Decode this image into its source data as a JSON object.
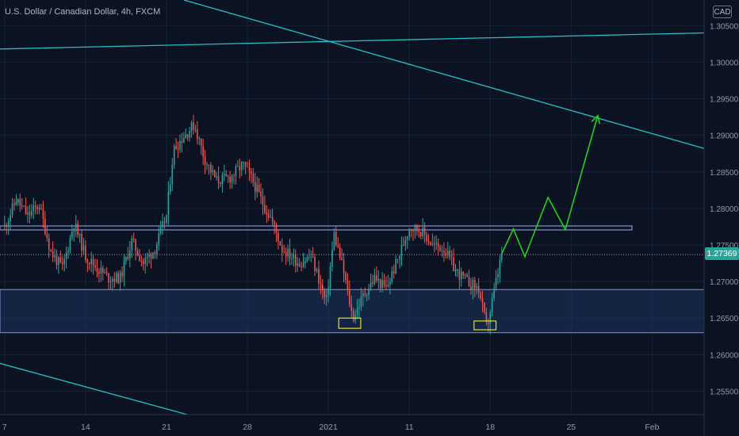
{
  "header": {
    "title": "U.S. Dollar / Canadian Dollar, 4h, FXCM",
    "currency_badge": "CAD",
    "last_price": "1.27369"
  },
  "colors": {
    "background": "#0b1323",
    "grid": "#172236",
    "candle_up": "#26a69a",
    "candle_down": "#ef5350",
    "trendline": "#1fbfc7",
    "zone": "#1f3a6b",
    "zone_border": "#7f95d6",
    "projection": "#1ed219",
    "marker": "#e6e20f",
    "axis_text": "#9598a1"
  },
  "chart_data": {
    "type": "candlestick",
    "instrument": "USDCAD",
    "timeframe": "4h",
    "source": "FXCM",
    "y_axis": {
      "ticks": [
        "1.25500",
        "1.26000",
        "1.26500",
        "1.27000",
        "1.27500",
        "1.28000",
        "1.28500",
        "1.29000",
        "1.29500",
        "1.30000",
        "1.30500"
      ],
      "ylim": [
        1.2518,
        1.3085
      ]
    },
    "x_axis": {
      "ticks": [
        "7",
        "14",
        "21",
        "28",
        "2021",
        "11",
        "18",
        "25",
        "Feb"
      ],
      "tick_positions": [
        0,
        7,
        14,
        21,
        28,
        35,
        42,
        49,
        56
      ],
      "xlim": [
        -0.4,
        60.5
      ]
    },
    "last_price": 1.27369,
    "candles_per_day": 6,
    "price_path": [
      [
        0,
        1.2775
      ],
      [
        1,
        1.2812
      ],
      [
        2,
        1.279
      ],
      [
        3,
        1.2805
      ],
      [
        4,
        1.274
      ],
      [
        5,
        1.2718
      ],
      [
        6,
        1.278
      ],
      [
        7,
        1.2735
      ],
      [
        8,
        1.2718
      ],
      [
        9,
        1.2705
      ],
      [
        10,
        1.2705
      ],
      [
        11,
        1.2755
      ],
      [
        12,
        1.2725
      ],
      [
        13,
        1.2745
      ],
      [
        14,
        1.279
      ],
      [
        14.6,
        1.288
      ],
      [
        15.3,
        1.2895
      ],
      [
        16.4,
        1.2915
      ],
      [
        17.3,
        1.2868
      ],
      [
        18.3,
        1.2838
      ],
      [
        19.5,
        1.2842
      ],
      [
        20.6,
        1.286
      ],
      [
        21.4,
        1.284
      ],
      [
        22.3,
        1.2808
      ],
      [
        23,
        1.2788
      ],
      [
        24,
        1.2745
      ],
      [
        25.5,
        1.2725
      ],
      [
        26.5,
        1.2735
      ],
      [
        27,
        1.2712
      ],
      [
        27.8,
        1.267
      ],
      [
        28.5,
        1.2765
      ],
      [
        29.3,
        1.2715
      ],
      [
        30.1,
        1.265
      ],
      [
        31,
        1.268
      ],
      [
        32,
        1.2705
      ],
      [
        33,
        1.269
      ],
      [
        34,
        1.273
      ],
      [
        35,
        1.2775
      ],
      [
        36,
        1.277
      ],
      [
        37,
        1.275
      ],
      [
        38,
        1.2745
      ],
      [
        39,
        1.2715
      ],
      [
        40,
        1.27
      ],
      [
        41,
        1.269
      ],
      [
        41.7,
        1.2635
      ],
      [
        42.5,
        1.27
      ],
      [
        43,
        1.2738
      ]
    ],
    "horizontal_zones": [
      {
        "top": 1.2776,
        "bottom": 1.2771
      },
      {
        "top": 1.2689,
        "bottom": 1.263
      }
    ],
    "trendlines": [
      {
        "x1": 15.5,
        "y1": 1.3085,
        "x2": 60.5,
        "y2": 1.2882
      },
      {
        "x1": -0.4,
        "y1": 1.3018,
        "x2": 60.5,
        "y2": 1.304
      },
      {
        "x1": -0.4,
        "y1": 1.2588,
        "x2": 15.8,
        "y2": 1.2518
      }
    ],
    "projection": [
      [
        43,
        1.2738
      ],
      [
        44,
        1.2772
      ],
      [
        45,
        1.2734
      ],
      [
        47,
        1.2815
      ],
      [
        48.5,
        1.2771
      ],
      [
        51.3,
        1.2927
      ]
    ],
    "markers": [
      {
        "x1": 28.9,
        "x2": 30.8,
        "y_top": 1.265,
        "y_bottom": 1.2636
      },
      {
        "x1": 40.6,
        "x2": 42.5,
        "y_top": 1.2646,
        "y_bottom": 1.2634
      }
    ],
    "xlabel": "",
    "ylabel": "",
    "grid": true
  }
}
